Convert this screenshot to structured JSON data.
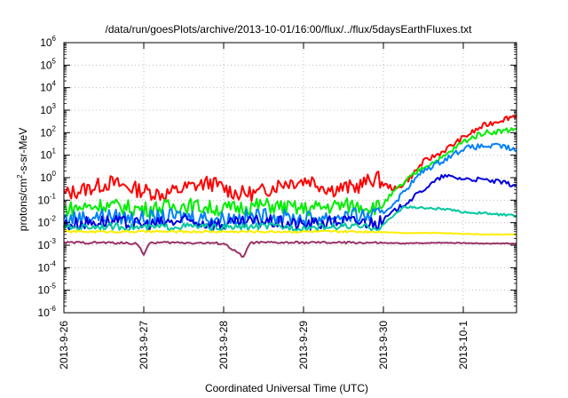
{
  "chart_data": {
    "type": "line",
    "title": "/data/run/goesPlots/archive/2013-10-01/16:00/flux/../flux/5daysEarthFluxes.txt",
    "xlabel": "Coordinated Universal Time (UTC)",
    "ylabel_parts": [
      "protons/cm",
      "2",
      "-s-sr-MeV"
    ],
    "x_ticks": [
      "2013-9-26",
      "2013-9-27",
      "2013-9-28",
      "2013-9-29",
      "2013-9-30",
      "2013-10-1"
    ],
    "xlim": [
      "2013-09-26T00:00",
      "2013-10-01T16:00"
    ],
    "yscale": "log",
    "ylim": [
      1e-06,
      1000000.0
    ],
    "y_ticks": [
      {
        "base": "10",
        "exp": "6",
        "value": 1000000.0
      },
      {
        "base": "10",
        "exp": "5",
        "value": 100000.0
      },
      {
        "base": "10",
        "exp": "4",
        "value": 10000.0
      },
      {
        "base": "10",
        "exp": "3",
        "value": 1000.0
      },
      {
        "base": "10",
        "exp": "2",
        "value": 100.0
      },
      {
        "base": "10",
        "exp": "1",
        "value": 10.0
      },
      {
        "base": "10",
        "exp": "0",
        "value": 1.0
      },
      {
        "base": "10",
        "exp": "-1",
        "value": 0.1
      },
      {
        "base": "10",
        "exp": "-2",
        "value": 0.01
      },
      {
        "base": "10",
        "exp": "-3",
        "value": 0.001
      },
      {
        "base": "10",
        "exp": "-4",
        "value": 0.0001
      },
      {
        "base": "10",
        "exp": "-5",
        "value": 1e-05
      },
      {
        "base": "10",
        "exp": "-6",
        "value": 1e-06
      }
    ],
    "grid": true,
    "series": [
      {
        "color": "#ff0000",
        "points": [
          [
            "2013-09-26T00:00",
            0.18
          ],
          [
            "2013-09-26T06:00",
            0.3
          ],
          [
            "2013-09-26T14:00",
            0.6
          ],
          [
            "2013-09-26T22:00",
            0.3
          ],
          [
            "2013-09-27T06:00",
            0.18
          ],
          [
            "2013-09-27T14:00",
            0.4
          ],
          [
            "2013-09-27T20:00",
            0.6
          ],
          [
            "2013-09-28T04:00",
            0.2
          ],
          [
            "2013-09-28T10:00",
            0.2
          ],
          [
            "2013-09-28T18:00",
            0.6
          ],
          [
            "2013-09-29T02:00",
            0.8
          ],
          [
            "2013-09-29T08:00",
            0.3
          ],
          [
            "2013-09-29T16:00",
            0.4
          ],
          [
            "2013-09-29T22:00",
            1.0
          ],
          [
            "2013-09-30T00:00",
            0.5
          ],
          [
            "2013-09-30T04:00",
            0.3
          ],
          [
            "2013-09-30T08:00",
            1.0
          ],
          [
            "2013-09-30T12:00",
            5
          ],
          [
            "2013-09-30T18:00",
            15
          ],
          [
            "2013-10-01T00:00",
            60
          ],
          [
            "2013-10-01T06:00",
            200
          ],
          [
            "2013-10-01T12:00",
            400
          ],
          [
            "2013-10-01T16:00",
            600
          ]
        ]
      },
      {
        "color": "#00ee00",
        "points": [
          [
            "2013-09-26T00:00",
            0.04
          ],
          [
            "2013-09-26T12:00",
            0.06
          ],
          [
            "2013-09-27T00:00",
            0.04
          ],
          [
            "2013-09-27T12:00",
            0.06
          ],
          [
            "2013-09-28T00:00",
            0.04
          ],
          [
            "2013-09-28T12:00",
            0.06
          ],
          [
            "2013-09-29T00:00",
            0.04
          ],
          [
            "2013-09-29T12:00",
            0.06
          ],
          [
            "2013-09-29T23:00",
            0.05
          ],
          [
            "2013-09-30T04:00",
            0.3
          ],
          [
            "2013-09-30T08:00",
            1.0
          ],
          [
            "2013-09-30T12:00",
            3
          ],
          [
            "2013-09-30T18:00",
            8
          ],
          [
            "2013-10-01T00:00",
            40
          ],
          [
            "2013-10-01T06:00",
            100
          ],
          [
            "2013-10-01T12:00",
            120
          ],
          [
            "2013-10-01T16:00",
            150
          ]
        ]
      },
      {
        "color": "#0080ff",
        "points": [
          [
            "2013-09-26T00:00",
            0.015
          ],
          [
            "2013-09-26T12:00",
            0.02
          ],
          [
            "2013-09-27T00:00",
            0.015
          ],
          [
            "2013-09-27T12:00",
            0.02
          ],
          [
            "2013-09-28T00:00",
            0.015
          ],
          [
            "2013-09-28T12:00",
            0.02
          ],
          [
            "2013-09-29T00:00",
            0.015
          ],
          [
            "2013-09-29T12:00",
            0.02
          ],
          [
            "2013-09-29T23:00",
            0.02
          ],
          [
            "2013-09-30T04:00",
            0.1
          ],
          [
            "2013-09-30T08:00",
            0.5
          ],
          [
            "2013-09-30T12:00",
            2
          ],
          [
            "2013-09-30T18:00",
            6
          ],
          [
            "2013-10-01T00:00",
            20
          ],
          [
            "2013-10-01T06:00",
            25
          ],
          [
            "2013-10-01T12:00",
            25
          ],
          [
            "2013-10-01T16:00",
            15
          ]
        ]
      },
      {
        "color": "#0000dd",
        "points": [
          [
            "2013-09-26T00:00",
            0.008
          ],
          [
            "2013-09-26T12:00",
            0.012
          ],
          [
            "2013-09-27T00:00",
            0.008
          ],
          [
            "2013-09-27T12:00",
            0.012
          ],
          [
            "2013-09-28T00:00",
            0.008
          ],
          [
            "2013-09-28T12:00",
            0.012
          ],
          [
            "2013-09-29T00:00",
            0.008
          ],
          [
            "2013-09-29T12:00",
            0.012
          ],
          [
            "2013-09-29T23:00",
            0.01
          ],
          [
            "2013-09-30T04:00",
            0.04
          ],
          [
            "2013-09-30T08:00",
            0.1
          ],
          [
            "2013-09-30T12:00",
            0.3
          ],
          [
            "2013-09-30T18:00",
            1.2
          ],
          [
            "2013-10-01T00:00",
            0.9
          ],
          [
            "2013-10-01T06:00",
            0.8
          ],
          [
            "2013-10-01T12:00",
            0.6
          ],
          [
            "2013-10-01T16:00",
            0.45
          ]
        ]
      },
      {
        "color": "#00c8a0",
        "points": [
          [
            "2013-09-26T00:00",
            0.006
          ],
          [
            "2013-09-26T12:00",
            0.007
          ],
          [
            "2013-09-27T00:00",
            0.006
          ],
          [
            "2013-09-27T12:00",
            0.007
          ],
          [
            "2013-09-28T00:00",
            0.006
          ],
          [
            "2013-09-28T12:00",
            0.007
          ],
          [
            "2013-09-29T00:00",
            0.006
          ],
          [
            "2013-09-29T12:00",
            0.007
          ],
          [
            "2013-09-29T23:00",
            0.006
          ],
          [
            "2013-09-30T06:00",
            0.05
          ],
          [
            "2013-09-30T12:00",
            0.045
          ],
          [
            "2013-09-30T18:00",
            0.04
          ],
          [
            "2013-10-01T00:00",
            0.03
          ],
          [
            "2013-10-01T08:00",
            0.025
          ],
          [
            "2013-10-01T16:00",
            0.02
          ]
        ]
      },
      {
        "color": "#ffee00",
        "points": [
          [
            "2013-09-26T00:00",
            0.004
          ],
          [
            "2013-09-26T12:00",
            0.004
          ],
          [
            "2013-09-27T00:00",
            0.004
          ],
          [
            "2013-09-27T12:00",
            0.004
          ],
          [
            "2013-09-28T00:00",
            0.004
          ],
          [
            "2013-09-28T12:00",
            0.004
          ],
          [
            "2013-09-29T00:00",
            0.004
          ],
          [
            "2013-09-29T12:00",
            0.004
          ],
          [
            "2013-09-29T23:00",
            0.004
          ],
          [
            "2013-09-30T06:00",
            0.0035
          ],
          [
            "2013-09-30T18:00",
            0.0035
          ],
          [
            "2013-10-01T06:00",
            0.003
          ],
          [
            "2013-10-01T16:00",
            0.003
          ]
        ]
      },
      {
        "color": "#993366",
        "points": [
          [
            "2013-09-26T00:00",
            0.0013
          ],
          [
            "2013-09-26T12:00",
            0.0013
          ],
          [
            "2013-09-26T22:00",
            0.0012
          ],
          [
            "2013-09-27T00:00",
            0.0004
          ],
          [
            "2013-09-27T02:00",
            0.0013
          ],
          [
            "2013-09-27T12:00",
            0.0013
          ],
          [
            "2013-09-28T00:00",
            0.0012
          ],
          [
            "2013-09-28T06:00",
            0.0003
          ],
          [
            "2013-09-28T08:00",
            0.0013
          ],
          [
            "2013-09-28T18:00",
            0.0013
          ],
          [
            "2013-09-29T06:00",
            0.0013
          ],
          [
            "2013-09-29T18:00",
            0.0013
          ],
          [
            "2013-09-30T06:00",
            0.0012
          ],
          [
            "2013-09-30T18:00",
            0.0013
          ],
          [
            "2013-10-01T06:00",
            0.0012
          ],
          [
            "2013-10-01T16:00",
            0.0012
          ]
        ]
      }
    ]
  }
}
